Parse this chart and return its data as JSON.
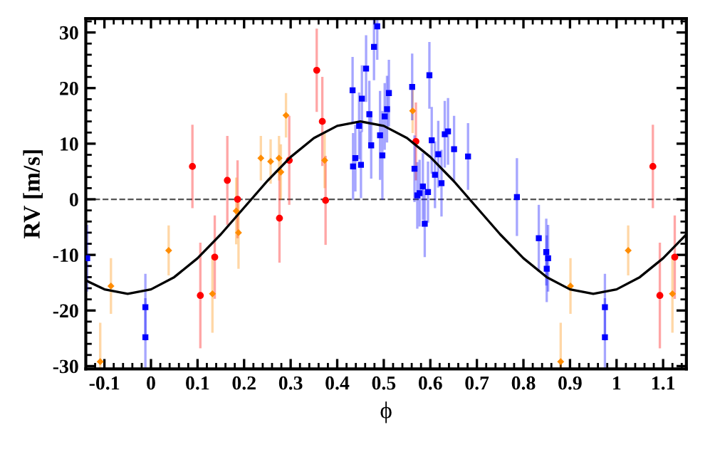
{
  "chart_data": {
    "type": "scatter",
    "xlabel": "ϕ",
    "ylabel": "RV [m/s]",
    "xlim": [
      -0.14,
      1.15
    ],
    "ylim": [
      -30.5,
      32.5
    ],
    "xticks": [
      -0.1,
      0.0,
      0.1,
      0.2,
      0.3,
      0.4,
      0.5,
      0.6,
      0.7,
      0.8,
      0.9,
      1.0,
      1.1
    ],
    "yticks": [
      -30,
      -20,
      -10,
      0,
      10,
      20,
      30
    ],
    "grid": false,
    "legend": false,
    "ref_lines": [
      {
        "axis": "y",
        "value": 0,
        "label": null,
        "color": "#555555",
        "line_style": "dashed"
      }
    ],
    "series": [
      {
        "type": "line",
        "color": "#000000",
        "marker": "none",
        "line_style": "solid",
        "x": [
          -0.14,
          -0.1,
          -0.05,
          0.0,
          0.05,
          0.1,
          0.15,
          0.2,
          0.25,
          0.3,
          0.35,
          0.4,
          0.45,
          0.5,
          0.55,
          0.6,
          0.65,
          0.7,
          0.75,
          0.8,
          0.85,
          0.9,
          0.95,
          1.0,
          1.05,
          1.1,
          1.15
        ],
        "values": [
          -14.6,
          -16.2,
          -17.0,
          -16.2,
          -14.0,
          -10.6,
          -6.3,
          -1.5,
          3.3,
          7.6,
          11.0,
          13.2,
          14.0,
          13.2,
          11.0,
          7.6,
          3.3,
          -1.5,
          -6.3,
          -10.6,
          -14.0,
          -16.2,
          -17.0,
          -16.2,
          -14.0,
          -10.6,
          -6.3
        ]
      },
      {
        "color": "#ff0000",
        "marker": "circle",
        "x": [
          0.089,
          0.106,
          0.137,
          0.164,
          0.186,
          0.276,
          0.297,
          0.356,
          0.368,
          0.375,
          0.569,
          1.078,
          1.093,
          1.125
        ],
        "values": [
          5.9,
          -17.3,
          -10.4,
          3.4,
          0.0,
          -3.4,
          7.0,
          23.2,
          14.0,
          -0.2,
          10.4,
          5.9,
          -17.3,
          -10.4
        ],
        "errors": [
          7.5,
          9.5,
          7.5,
          8,
          7,
          8,
          8,
          7.5,
          8,
          8,
          7,
          7.5,
          9.5,
          7.5
        ]
      },
      {
        "color": "#ff8c00",
        "marker": "diamond",
        "x": [
          -0.109,
          -0.086,
          0.038,
          0.132,
          0.183,
          0.188,
          0.236,
          0.257,
          0.275,
          0.279,
          0.29,
          0.373,
          0.562,
          0.88,
          0.901,
          1.025,
          1.12
        ],
        "values": [
          -29.2,
          -15.6,
          -9.2,
          -17.0,
          -2.1,
          -6.0,
          7.4,
          6.8,
          7.4,
          4.9,
          15.1,
          7.0,
          15.9,
          -29.2,
          -15.6,
          -9.2,
          -17.0
        ],
        "errors": [
          7,
          5,
          4.5,
          7,
          6,
          6.5,
          4,
          4,
          4,
          5,
          4,
          5,
          4,
          7,
          5,
          4.5,
          7
        ]
      },
      {
        "color": "#0000ff",
        "marker": "square",
        "x": [
          -0.137,
          -0.012,
          -0.012,
          0.433,
          0.439,
          0.434,
          0.447,
          0.453,
          0.451,
          0.462,
          0.469,
          0.473,
          0.479,
          0.486,
          0.492,
          0.497,
          0.502,
          0.507,
          0.511,
          0.561,
          0.566,
          0.572,
          0.577,
          0.584,
          0.588,
          0.595,
          0.598,
          0.603,
          0.61,
          0.617,
          0.624,
          0.631,
          0.638,
          0.651,
          0.681,
          0.786,
          0.833,
          0.849,
          0.853,
          0.85,
          0.975,
          0.975
        ],
        "values": [
          -10.6,
          -19.4,
          -24.8,
          19.6,
          7.4,
          5.9,
          13.2,
          18.1,
          6.2,
          23.5,
          15.3,
          9.7,
          27.4,
          31.1,
          11.5,
          7.9,
          14.9,
          16.2,
          19.1,
          20.2,
          5.5,
          0.7,
          1.1,
          2.3,
          -4.4,
          1.3,
          22.3,
          10.6,
          4.4,
          8.1,
          2.9,
          11.7,
          12.2,
          9.0,
          7.7,
          0.4,
          -7.0,
          -9.5,
          -10.6,
          -12.5,
          -19.4,
          -24.8
        ],
        "errors": [
          6,
          6,
          7,
          6,
          6,
          6,
          6,
          6,
          6,
          6,
          6,
          6,
          6,
          [
            25.1,
            32.5
          ],
          8,
          8,
          6,
          6,
          6,
          6,
          6,
          6,
          6,
          6,
          6,
          5.5,
          6,
          6,
          6,
          6,
          6,
          6,
          6,
          6,
          6,
          7,
          6,
          6,
          6,
          6,
          6,
          7
        ]
      }
    ]
  }
}
